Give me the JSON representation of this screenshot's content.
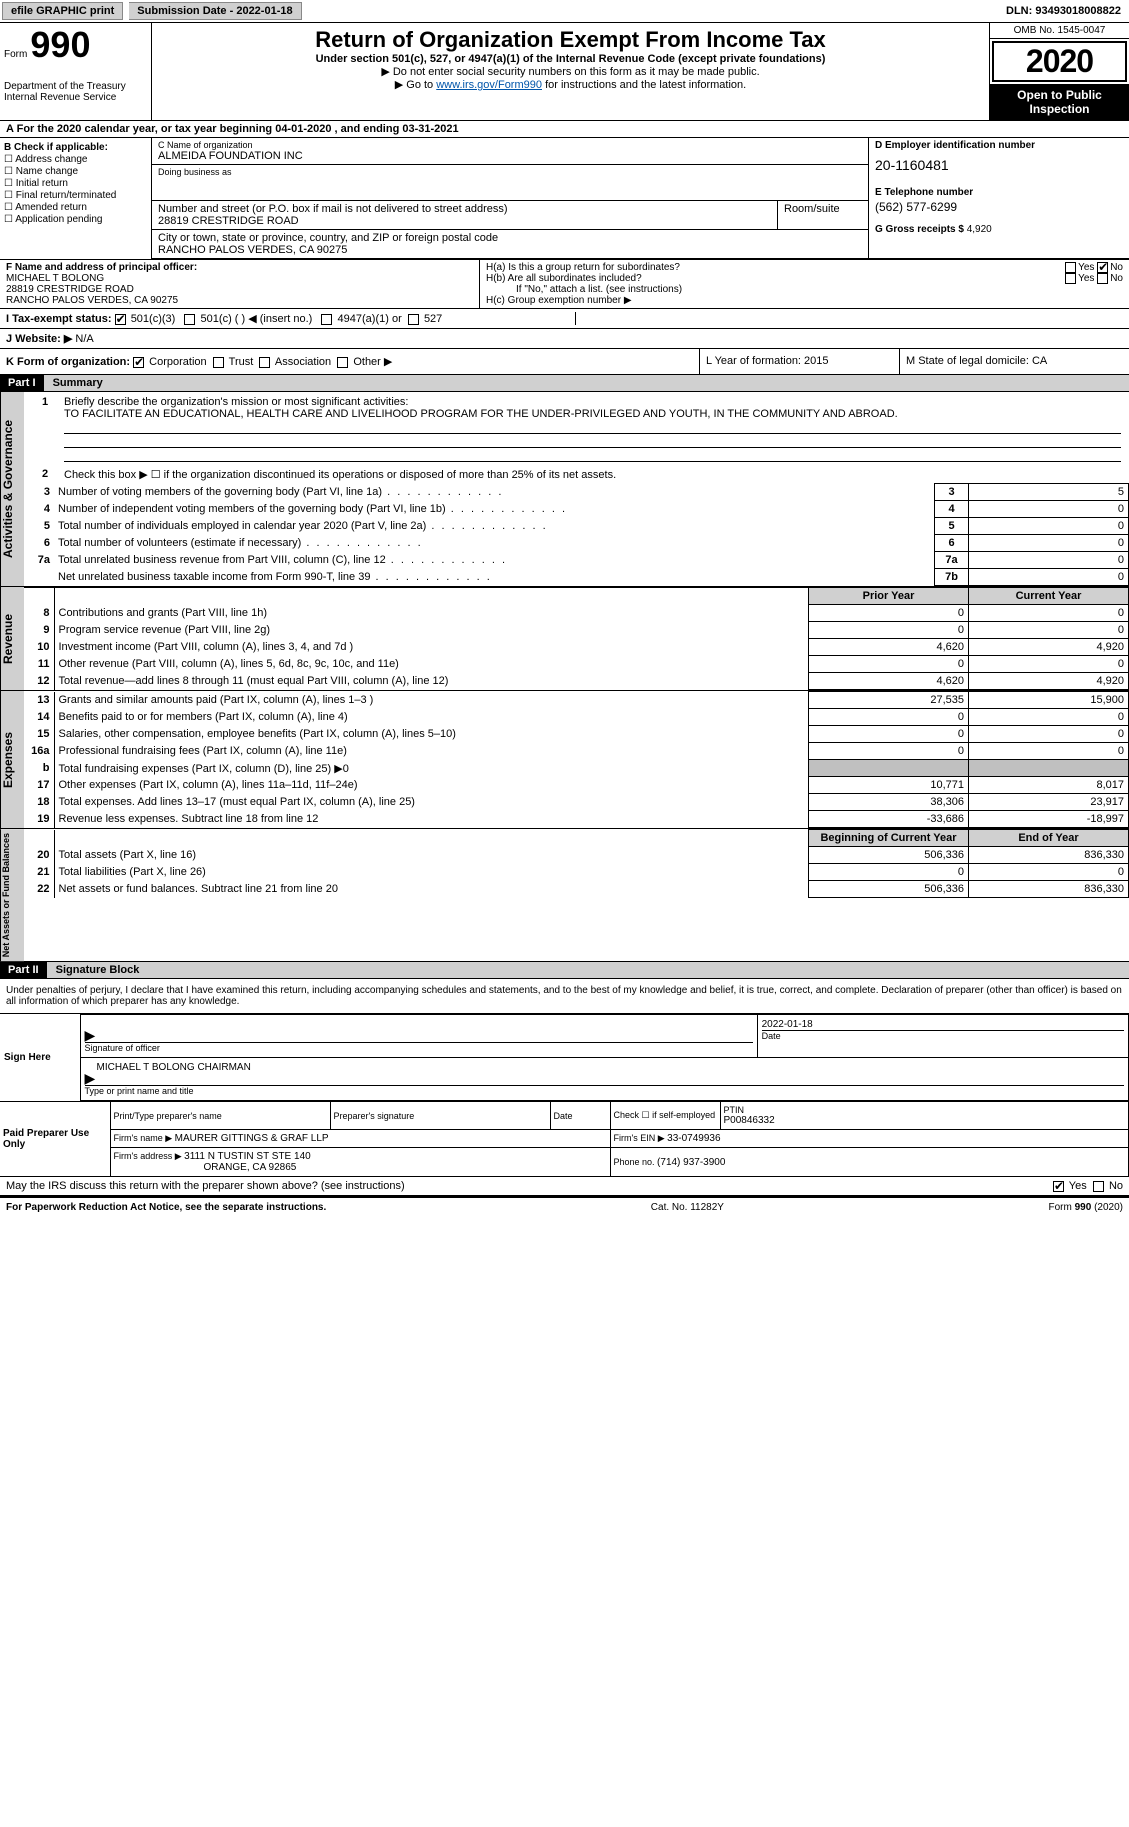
{
  "topbar": {
    "efile": "efile GRAPHIC print",
    "submission_label": "Submission Date - ",
    "submission_date": "2022-01-18",
    "dln_label": "DLN: ",
    "dln": "93493018008822"
  },
  "header": {
    "form_word": "Form",
    "form_number": "990",
    "dept1": "Department of the Treasury",
    "dept2": "Internal Revenue Service",
    "title": "Return of Organization Exempt From Income Tax",
    "subtitle": "Under section 501(c), 527, or 4947(a)(1) of the Internal Revenue Code (except private foundations)",
    "note1": "Do not enter social security numbers on this form as it may be made public.",
    "note2_pre": "Go to ",
    "note2_link": "www.irs.gov/Form990",
    "note2_post": " for instructions and the latest information.",
    "omb": "OMB No. 1545-0047",
    "year": "2020",
    "inspect1": "Open to Public",
    "inspect2": "Inspection"
  },
  "period": {
    "text": "For the 2020 calendar year, or tax year beginning 04-01-2020   , and ending 03-31-2021"
  },
  "boxB": {
    "label": "B Check if applicable:",
    "opts": [
      "Address change",
      "Name change",
      "Initial return",
      "Final return/terminated",
      "Amended return",
      "Application pending"
    ]
  },
  "boxC": {
    "name_label": "C Name of organization",
    "name": "ALMEIDA FOUNDATION INC",
    "dba_label": "Doing business as",
    "dba": "",
    "street_label": "Number and street (or P.O. box if mail is not delivered to street address)",
    "street": "28819 CRESTRIDGE ROAD",
    "room_label": "Room/suite",
    "room": "",
    "city_label": "City or town, state or province, country, and ZIP or foreign postal code",
    "city": "RANCHO PALOS VERDES, CA  90275"
  },
  "boxD": {
    "label": "D Employer identification number",
    "value": "20-1160481"
  },
  "boxE": {
    "label": "E Telephone number",
    "value": "(562) 577-6299"
  },
  "boxG": {
    "label": "G Gross receipts $ ",
    "value": "4,920"
  },
  "boxF": {
    "label": "F Name and address of principal officer:",
    "name": "MICHAEL T BOLONG",
    "addr1": "28819 CRESTRIDGE ROAD",
    "addr2": "RANCHO PALOS VERDES, CA  90275"
  },
  "boxH": {
    "ha_label": "H(a)  Is this a group return for subordinates?",
    "hb_label": "H(b)  Are all subordinates included?",
    "hb_note": "If \"No,\" attach a list. (see instructions)",
    "hc_label": "H(c)  Group exemption number ▶",
    "yes": "Yes",
    "no": "No"
  },
  "boxI": {
    "label": "I   Tax-exempt status:",
    "opts": [
      "501(c)(3)",
      "501(c) (  ) ◀ (insert no.)",
      "4947(a)(1) or",
      "527"
    ]
  },
  "boxJ": {
    "label": "J   Website: ▶",
    "value": "N/A"
  },
  "boxK": {
    "label": "K Form of organization:",
    "opts": [
      "Corporation",
      "Trust",
      "Association",
      "Other ▶"
    ]
  },
  "boxL": {
    "text": "L Year of formation: 2015"
  },
  "boxM": {
    "text": "M State of legal domicile: CA"
  },
  "part1": {
    "hdr": "Part I",
    "title": "Summary",
    "q1_label": "1",
    "q1": "Briefly describe the organization's mission or most significant activities:",
    "mission": "TO FACILITATE AN EDUCATIONAL, HEALTH CARE AND LIVELIHOOD PROGRAM FOR THE UNDER-PRIVILEGED AND YOUTH, IN THE COMMUNITY AND ABROAD.",
    "q2": "Check this box ▶ ☐  if the organization discontinued its operations or disposed of more than 25% of its net assets.",
    "lines": [
      {
        "n": "3",
        "d": "Number of voting members of the governing body (Part VI, line 1a)",
        "rn": "3",
        "v": "5"
      },
      {
        "n": "4",
        "d": "Number of independent voting members of the governing body (Part VI, line 1b)",
        "rn": "4",
        "v": "0"
      },
      {
        "n": "5",
        "d": "Total number of individuals employed in calendar year 2020 (Part V, line 2a)",
        "rn": "5",
        "v": "0"
      },
      {
        "n": "6",
        "d": "Total number of volunteers (estimate if necessary)",
        "rn": "6",
        "v": "0"
      },
      {
        "n": "7a",
        "d": "Total unrelated business revenue from Part VIII, column (C), line 12",
        "rn": "7a",
        "v": "0"
      },
      {
        "n": "",
        "d": "Net unrelated business taxable income from Form 990-T, line 39",
        "rn": "7b",
        "v": "0"
      }
    ],
    "prior_hdr": "Prior Year",
    "current_hdr": "Current Year",
    "revenue": [
      {
        "n": "8",
        "d": "Contributions and grants (Part VIII, line 1h)",
        "p": "0",
        "c": "0"
      },
      {
        "n": "9",
        "d": "Program service revenue (Part VIII, line 2g)",
        "p": "0",
        "c": "0"
      },
      {
        "n": "10",
        "d": "Investment income (Part VIII, column (A), lines 3, 4, and 7d )",
        "p": "4,620",
        "c": "4,920"
      },
      {
        "n": "11",
        "d": "Other revenue (Part VIII, column (A), lines 5, 6d, 8c, 9c, 10c, and 11e)",
        "p": "0",
        "c": "0"
      },
      {
        "n": "12",
        "d": "Total revenue—add lines 8 through 11 (must equal Part VIII, column (A), line 12)",
        "p": "4,620",
        "c": "4,920"
      }
    ],
    "expenses": [
      {
        "n": "13",
        "d": "Grants and similar amounts paid (Part IX, column (A), lines 1–3 )",
        "p": "27,535",
        "c": "15,900"
      },
      {
        "n": "14",
        "d": "Benefits paid to or for members (Part IX, column (A), line 4)",
        "p": "0",
        "c": "0"
      },
      {
        "n": "15",
        "d": "Salaries, other compensation, employee benefits (Part IX, column (A), lines 5–10)",
        "p": "0",
        "c": "0"
      },
      {
        "n": "16a",
        "d": "Professional fundraising fees (Part IX, column (A), line 11e)",
        "p": "0",
        "c": "0"
      },
      {
        "n": "b",
        "d": "Total fundraising expenses (Part IX, column (D), line 25) ▶0",
        "p": "",
        "c": "",
        "shade": true
      },
      {
        "n": "17",
        "d": "Other expenses (Part IX, column (A), lines 11a–11d, 11f–24e)",
        "p": "10,771",
        "c": "8,017"
      },
      {
        "n": "18",
        "d": "Total expenses. Add lines 13–17 (must equal Part IX, column (A), line 25)",
        "p": "38,306",
        "c": "23,917"
      },
      {
        "n": "19",
        "d": "Revenue less expenses. Subtract line 18 from line 12",
        "p": "-33,686",
        "c": "-18,997"
      }
    ],
    "begin_hdr": "Beginning of Current Year",
    "end_hdr": "End of Year",
    "netassets": [
      {
        "n": "20",
        "d": "Total assets (Part X, line 16)",
        "p": "506,336",
        "c": "836,330"
      },
      {
        "n": "21",
        "d": "Total liabilities (Part X, line 26)",
        "p": "0",
        "c": "0"
      },
      {
        "n": "22",
        "d": "Net assets or fund balances. Subtract line 21 from line 20",
        "p": "506,336",
        "c": "836,330"
      }
    ],
    "side_gov": "Activities & Governance",
    "side_rev": "Revenue",
    "side_exp": "Expenses",
    "side_net": "Net Assets or Fund Balances"
  },
  "part2": {
    "hdr": "Part II",
    "title": "Signature Block",
    "declaration": "Under penalties of perjury, I declare that I have examined this return, including accompanying schedules and statements, and to the best of my knowledge and belief, it is true, correct, and complete. Declaration of preparer (other than officer) is based on all information of which preparer has any knowledge.",
    "sign_here": "Sign Here",
    "sig_officer": "Signature of officer",
    "sig_date": "Date",
    "sig_date_val": "2022-01-18",
    "officer_name": "MICHAEL T BOLONG  CHAIRMAN",
    "officer_label": "Type or print name and title",
    "paid": "Paid Preparer Use Only",
    "prep_name_label": "Print/Type preparer's name",
    "prep_name": "",
    "prep_sig_label": "Preparer's signature",
    "prep_date_label": "Date",
    "self_emp": "Check ☐ if self-employed",
    "ptin_label": "PTIN",
    "ptin": "P00846332",
    "firm_name_label": "Firm's name   ▶ ",
    "firm_name": "MAURER GITTINGS & GRAF LLP",
    "firm_ein_label": "Firm's EIN ▶ ",
    "firm_ein": "33-0749936",
    "firm_addr_label": "Firm's address ▶ ",
    "firm_addr1": "3111 N TUSTIN ST STE 140",
    "firm_addr2": "ORANGE, CA  92865",
    "phone_label": "Phone no. ",
    "phone": "(714) 937-3900",
    "may_discuss": "May the IRS discuss this return with the preparer shown above? (see instructions)",
    "yes": "Yes",
    "no": "No"
  },
  "footer": {
    "left": "For Paperwork Reduction Act Notice, see the separate instructions.",
    "mid": "Cat. No. 11282Y",
    "right": "Form 990 (2020)"
  }
}
